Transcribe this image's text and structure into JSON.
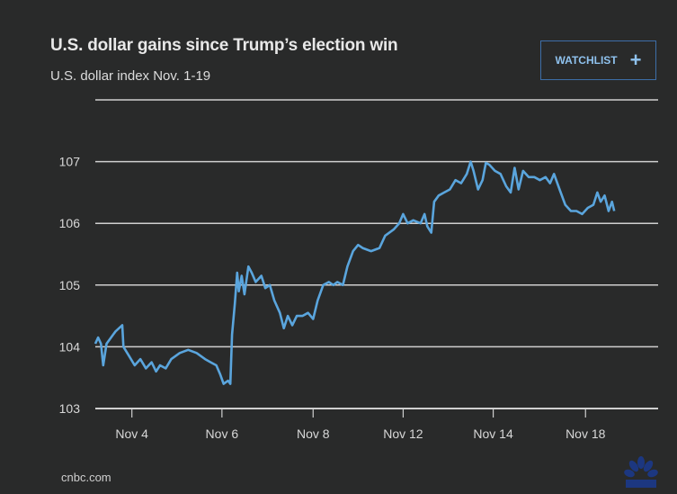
{
  "header": {
    "title": "U.S. dollar gains since Trump’s election win",
    "subtitle": "U.S. dollar index Nov. 1-19"
  },
  "watchlist": {
    "label": "WATCHLIST",
    "icon": "plus-icon"
  },
  "footer": {
    "source": "cnbc.com",
    "logo": "cnbc-peacock-logo"
  },
  "colors": {
    "background": "#292a2a",
    "line": "#5aa5dd",
    "grid": "#cfcfcf",
    "accent": "#3d6ea8"
  },
  "chart_data": {
    "type": "line",
    "title": "U.S. dollar gains since Trump’s election win",
    "subtitle": "U.S. dollar index Nov. 1-19",
    "xlabel": "",
    "ylabel": "",
    "ylim": [
      103,
      108
    ],
    "yticks": [
      103,
      104,
      105,
      106,
      107
    ],
    "xticks": [
      "Nov 4",
      "Nov 6",
      "Nov 8",
      "Nov 12",
      "Nov 14",
      "Nov 18"
    ],
    "xtick_index": [
      0.065,
      0.225,
      0.387,
      0.547,
      0.707,
      0.871
    ],
    "grid": true,
    "series": [
      {
        "name": "U.S. dollar index",
        "points": [
          [
            0.0,
            104.05
          ],
          [
            0.005,
            104.15
          ],
          [
            0.01,
            104.05
          ],
          [
            0.014,
            103.7
          ],
          [
            0.02,
            104.05
          ],
          [
            0.028,
            104.15
          ],
          [
            0.036,
            104.25
          ],
          [
            0.042,
            104.3
          ],
          [
            0.048,
            104.35
          ],
          [
            0.05,
            104.0
          ],
          [
            0.06,
            103.85
          ],
          [
            0.07,
            103.7
          ],
          [
            0.08,
            103.8
          ],
          [
            0.09,
            103.65
          ],
          [
            0.1,
            103.75
          ],
          [
            0.108,
            103.6
          ],
          [
            0.115,
            103.7
          ],
          [
            0.125,
            103.65
          ],
          [
            0.135,
            103.8
          ],
          [
            0.15,
            103.9
          ],
          [
            0.165,
            103.95
          ],
          [
            0.18,
            103.9
          ],
          [
            0.195,
            103.8
          ],
          [
            0.205,
            103.75
          ],
          [
            0.215,
            103.7
          ],
          [
            0.222,
            103.55
          ],
          [
            0.228,
            103.4
          ],
          [
            0.236,
            103.45
          ],
          [
            0.24,
            103.4
          ],
          [
            0.243,
            104.2
          ],
          [
            0.248,
            104.7
          ],
          [
            0.252,
            105.2
          ],
          [
            0.255,
            104.9
          ],
          [
            0.26,
            105.15
          ],
          [
            0.265,
            104.85
          ],
          [
            0.272,
            105.3
          ],
          [
            0.278,
            105.2
          ],
          [
            0.285,
            105.05
          ],
          [
            0.295,
            105.15
          ],
          [
            0.302,
            104.95
          ],
          [
            0.31,
            105.0
          ],
          [
            0.318,
            104.75
          ],
          [
            0.328,
            104.55
          ],
          [
            0.335,
            104.3
          ],
          [
            0.342,
            104.5
          ],
          [
            0.35,
            104.35
          ],
          [
            0.358,
            104.5
          ],
          [
            0.368,
            104.5
          ],
          [
            0.378,
            104.55
          ],
          [
            0.387,
            104.45
          ],
          [
            0.395,
            104.75
          ],
          [
            0.405,
            105.0
          ],
          [
            0.415,
            105.05
          ],
          [
            0.423,
            105.0
          ],
          [
            0.43,
            105.05
          ],
          [
            0.44,
            105.0
          ],
          [
            0.448,
            105.3
          ],
          [
            0.458,
            105.55
          ],
          [
            0.467,
            105.65
          ],
          [
            0.475,
            105.6
          ],
          [
            0.49,
            105.55
          ],
          [
            0.505,
            105.6
          ],
          [
            0.515,
            105.8
          ],
          [
            0.53,
            105.9
          ],
          [
            0.54,
            106.0
          ],
          [
            0.547,
            106.15
          ],
          [
            0.555,
            106.0
          ],
          [
            0.565,
            106.05
          ],
          [
            0.578,
            106.0
          ],
          [
            0.585,
            106.15
          ],
          [
            0.59,
            105.95
          ],
          [
            0.597,
            105.85
          ],
          [
            0.602,
            106.35
          ],
          [
            0.61,
            106.45
          ],
          [
            0.62,
            106.5
          ],
          [
            0.63,
            106.55
          ],
          [
            0.64,
            106.7
          ],
          [
            0.65,
            106.65
          ],
          [
            0.66,
            106.8
          ],
          [
            0.667,
            107.0
          ],
          [
            0.672,
            106.85
          ],
          [
            0.68,
            106.55
          ],
          [
            0.688,
            106.7
          ],
          [
            0.694,
            106.98
          ],
          [
            0.7,
            106.95
          ],
          [
            0.71,
            106.85
          ],
          [
            0.72,
            106.8
          ],
          [
            0.73,
            106.6
          ],
          [
            0.738,
            106.5
          ],
          [
            0.745,
            106.9
          ],
          [
            0.752,
            106.55
          ],
          [
            0.76,
            106.85
          ],
          [
            0.77,
            106.75
          ],
          [
            0.78,
            106.75
          ],
          [
            0.79,
            106.7
          ],
          [
            0.8,
            106.75
          ],
          [
            0.808,
            106.65
          ],
          [
            0.815,
            106.8
          ],
          [
            0.825,
            106.55
          ],
          [
            0.835,
            106.3
          ],
          [
            0.845,
            106.2
          ],
          [
            0.855,
            106.2
          ],
          [
            0.865,
            106.15
          ],
          [
            0.875,
            106.25
          ],
          [
            0.885,
            106.3
          ],
          [
            0.892,
            106.5
          ],
          [
            0.898,
            106.35
          ],
          [
            0.905,
            106.45
          ],
          [
            0.912,
            106.2
          ],
          [
            0.918,
            106.35
          ],
          [
            0.922,
            106.2
          ]
        ]
      }
    ]
  }
}
